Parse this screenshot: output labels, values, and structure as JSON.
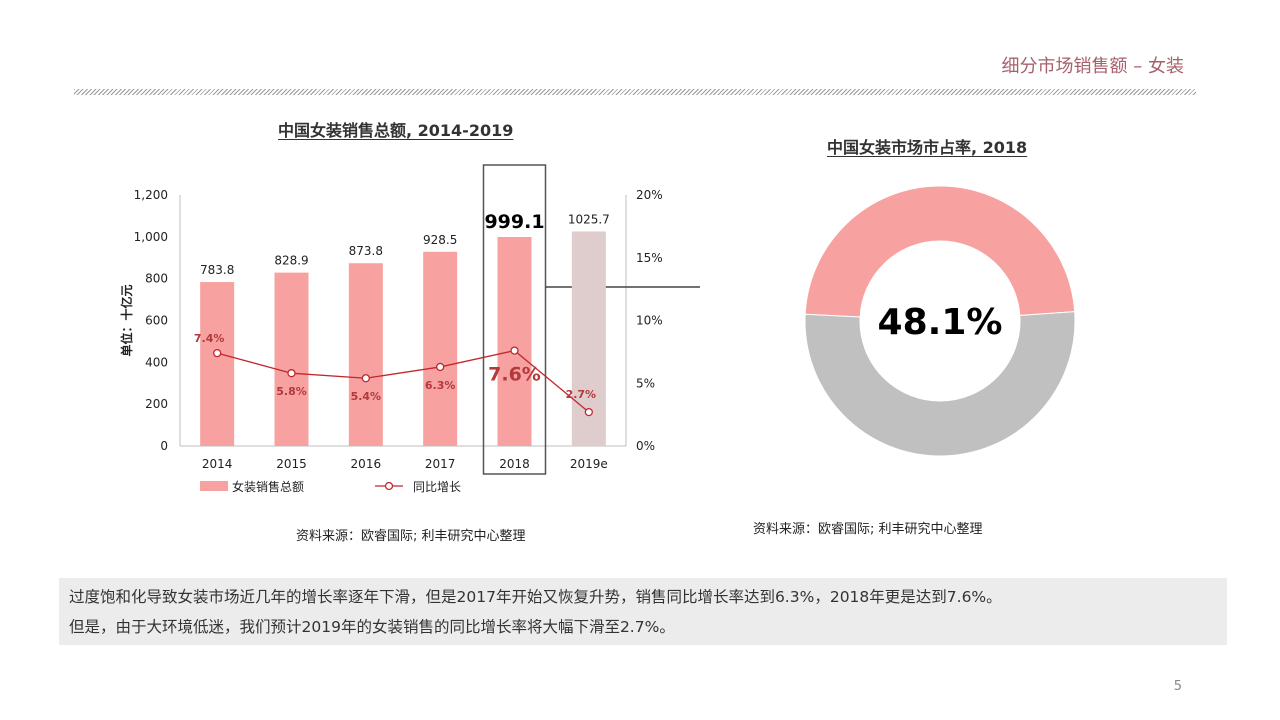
{
  "header": {
    "title": "细分市场销售额 – 女装"
  },
  "page_number": "5",
  "summary": {
    "line1": "过度饱和化导致女装市场近几年的增长率逐年下滑，但是2017年开始又恢复升势，销售同比增长率达到6.3%，2018年更是达到7.6%。",
    "line2": "但是，由于大环境低迷，我们预计2019年的女装销售的同比增长率将大幅下滑至2.7%。"
  },
  "colors": {
    "bar": "#f7a1a1",
    "bar_forecast": "#dfcdcd",
    "line": "#c0282d",
    "donut_share": "#f7a1a1",
    "donut_rest": "#c0c0c0",
    "accent": "#a7606c"
  },
  "chart_data": [
    {
      "type": "bar",
      "title": "中国女装销售总额, 2014-2019",
      "ylabel": "单位：十亿元",
      "categories": [
        "2014",
        "2015",
        "2016",
        "2017",
        "2018",
        "2019e"
      ],
      "ylim": [
        0,
        1200
      ],
      "yticks": [
        "0",
        "200",
        "400",
        "600",
        "800",
        "1,000",
        "1,200"
      ],
      "y2lim": [
        0,
        20
      ],
      "y2ticks": [
        "0%",
        "5%",
        "10%",
        "15%",
        "20%"
      ],
      "highlight_category": "2018",
      "series": [
        {
          "name": "女装销售总额",
          "kind": "bar",
          "values": [
            783.8,
            828.9,
            873.8,
            928.5,
            999.1,
            1025.7
          ],
          "labels": [
            "783.8",
            "828.9",
            "873.8",
            "928.5",
            "999.1",
            "1025.7"
          ]
        },
        {
          "name": "同比增长",
          "kind": "line",
          "axis": "right",
          "values": [
            7.4,
            5.8,
            5.4,
            6.3,
            7.6,
            2.7
          ],
          "labels": [
            "7.4%",
            "5.8%",
            "5.4%",
            "6.3%",
            "7.6%",
            "2.7%"
          ]
        }
      ],
      "legend": "bottom-left",
      "source": "资料来源：欧睿国际; 利丰研究中心整理"
    },
    {
      "type": "pie",
      "title": "中国女装市场市占率, 2018",
      "donut": true,
      "values": [
        48.1,
        51.9
      ],
      "center_label": "48.1%",
      "source": "资料来源：欧睿国际; 利丰研究中心整理"
    }
  ]
}
